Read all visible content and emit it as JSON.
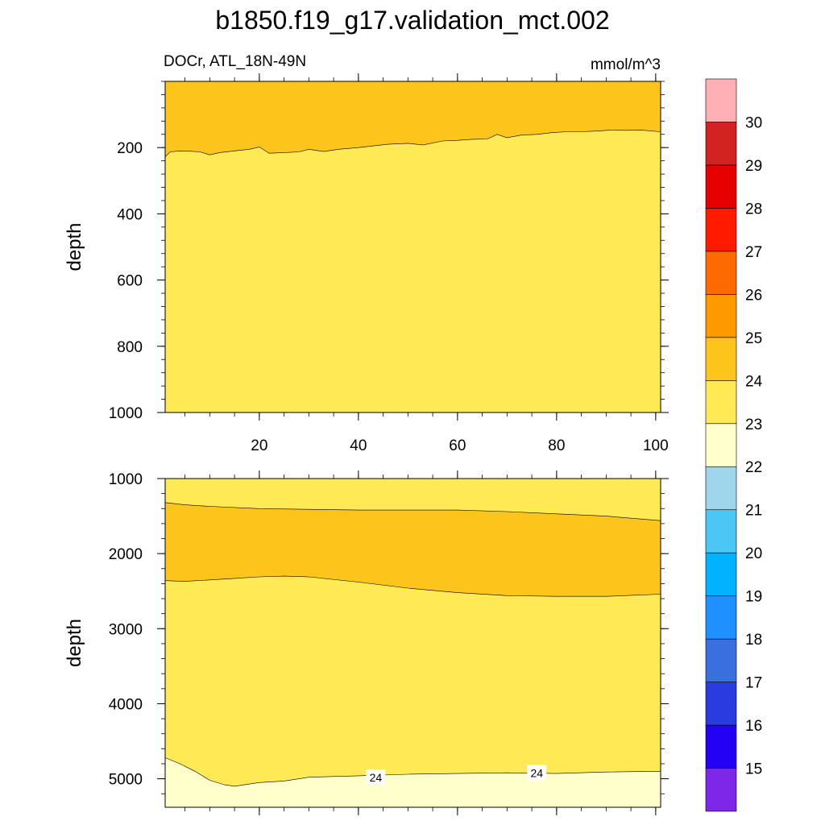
{
  "title": "b1850.f19_g17.validation_mct.002",
  "chart_data": {
    "type": "contour",
    "variable": "DOCr, ATL_18N-49N",
    "units": "mmol/m^3",
    "colorbar": {
      "levels": [
        15,
        16,
        17,
        18,
        19,
        20,
        21,
        22,
        23,
        24,
        25,
        26,
        27,
        28,
        29,
        30
      ],
      "colors": [
        "#7f27e8",
        "#2400f4",
        "#2a3ce0",
        "#3a6fe0",
        "#1e90ff",
        "#00b2ff",
        "#4cc6f5",
        "#a0d6ec",
        "#ffffcc",
        "#ffe955",
        "#fdc41c",
        "#fe9a00",
        "#ff6a00",
        "#ff1a00",
        "#e60000",
        "#d42121",
        "#ffb0b4"
      ]
    },
    "x_ticks": [
      "20",
      "40",
      "60",
      "80",
      "100"
    ],
    "x_range": [
      1,
      101
    ],
    "panels": [
      {
        "name": "upper",
        "ylabel": "depth",
        "y_range": [
          0,
          1000
        ],
        "y_ticks": [
          "200",
          "400",
          "600",
          "800",
          "1000"
        ],
        "contours": [
          {
            "level": 25,
            "x": [
              1,
              2,
              4,
              6,
              8,
              10,
              12,
              15,
              18,
              20,
              22,
              25,
              28,
              30,
              33,
              36,
              40,
              43,
              46,
              50,
              53,
              57,
              60,
              63,
              66,
              68,
              70,
              73,
              76,
              79,
              82,
              85,
              88,
              91,
              94,
              97,
              101
            ],
            "y": [
              228,
              213,
              210,
              211,
              213,
              222,
              215,
              210,
              205,
              198,
              217,
              215,
              213,
              205,
              212,
              205,
              200,
              195,
              190,
              187,
              192,
              180,
              178,
              175,
              174,
              160,
              170,
              162,
              160,
              155,
              152,
              152,
              150,
              147,
              148,
              147,
              152
            ]
          }
        ]
      },
      {
        "name": "lower",
        "ylabel": "depth",
        "y_range": [
          1000,
          5380
        ],
        "y_ticks": [
          "1000",
          "2000",
          "3000",
          "4000",
          "5000"
        ],
        "contours": [
          {
            "level": 25,
            "x": [
              1,
              5,
              10,
              20,
              30,
              40,
              50,
              60,
              70,
              80,
              90,
              101
            ],
            "y": [
              1320,
              1350,
              1370,
              1400,
              1410,
              1420,
              1420,
              1420,
              1440,
              1470,
              1500,
              1560
            ]
          },
          {
            "level": 25,
            "x": [
              1,
              5,
              10,
              15,
              20,
              25,
              30,
              40,
              50,
              60,
              70,
              80,
              90,
              101
            ],
            "y": [
              2360,
              2370,
              2350,
              2330,
              2310,
              2300,
              2310,
              2380,
              2460,
              2520,
              2560,
              2570,
              2570,
              2540
            ]
          },
          {
            "level": 24,
            "x": [
              1,
              4,
              7,
              10,
              13,
              15,
              17,
              20,
              25,
              30,
              40,
              50,
              60,
              70,
              80,
              90,
              101
            ],
            "y": [
              4720,
              4800,
              4900,
              5020,
              5080,
              5100,
              5080,
              5050,
              5030,
              4980,
              4960,
              4940,
              4930,
              4920,
              4930,
              4910,
              4900
            ]
          }
        ],
        "line_labels": [
          {
            "text": "24",
            "x": 43.5,
            "y": 4985
          },
          {
            "text": "24",
            "x": 76,
            "y": 4925
          }
        ]
      }
    ]
  }
}
